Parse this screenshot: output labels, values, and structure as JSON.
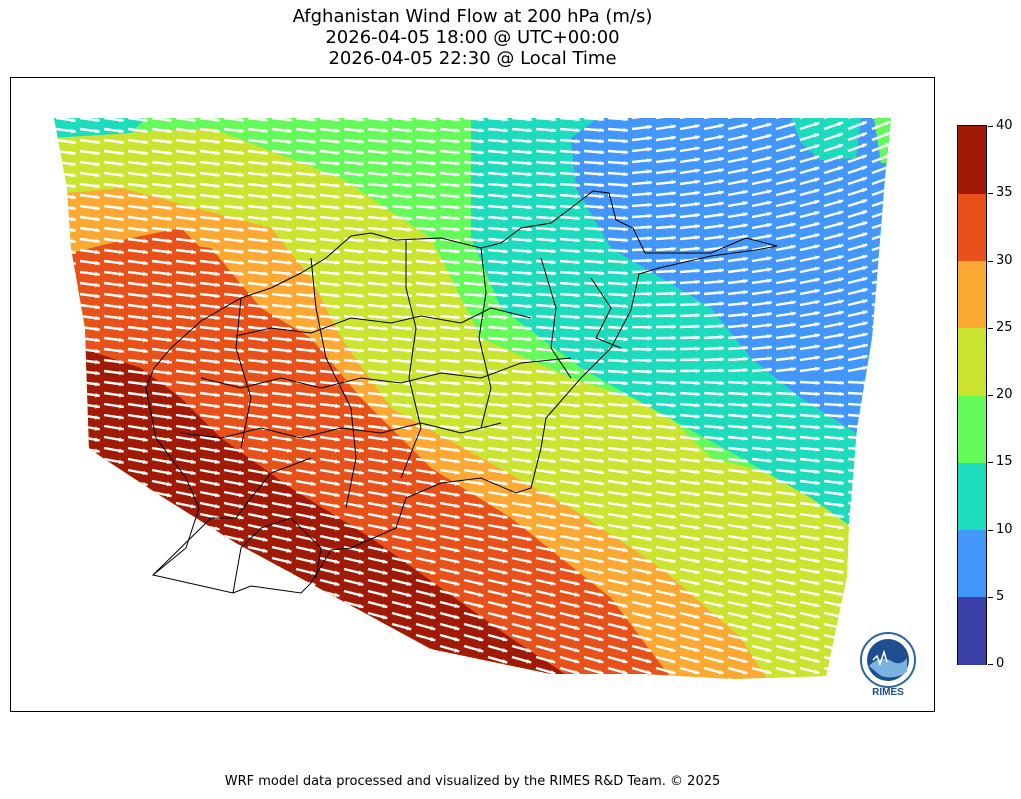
{
  "title": {
    "line1": "Afghanistan Wind Flow at 200 hPa (m/s)",
    "line2": "2026-04-05 18:00 @ UTC+00:00",
    "line3": "2026-04-05 22:30 @ Local Time"
  },
  "map": {
    "region": "Afghanistan",
    "variable": "Wind speed and direction at 200 hPa",
    "wind_direction": "westerly to west-southwesterly, strongest jet over the south and west",
    "zones": [
      {
        "label": "35-40",
        "color": "#a11a05"
      },
      {
        "label": "30-35",
        "color": "#e8521a"
      },
      {
        "label": "25-30",
        "color": "#fca934"
      },
      {
        "label": "20-25",
        "color": "#cbe42f"
      },
      {
        "label": "15-20",
        "color": "#64fb5a"
      },
      {
        "label": "10-15",
        "color": "#1cdcbd"
      },
      {
        "label": "5-10",
        "color": "#4397fb"
      }
    ],
    "vector_color": "#ffffff",
    "boundary_color": "#000000"
  },
  "colorbar": {
    "min": 0,
    "max": 40,
    "ticks": [
      "0",
      "5",
      "10",
      "15",
      "20",
      "25",
      "30",
      "35",
      "40"
    ],
    "colors": [
      "#3b3fa8",
      "#4397fb",
      "#1cdcbd",
      "#64fb5a",
      "#cbe42f",
      "#fca934",
      "#e8521a",
      "#a11a05"
    ]
  },
  "logo": {
    "text": "RIMES",
    "icon": "rimes-logo-icon"
  },
  "footer": "WRF model data processed and visualized by the RIMES R&D Team. © 2025"
}
